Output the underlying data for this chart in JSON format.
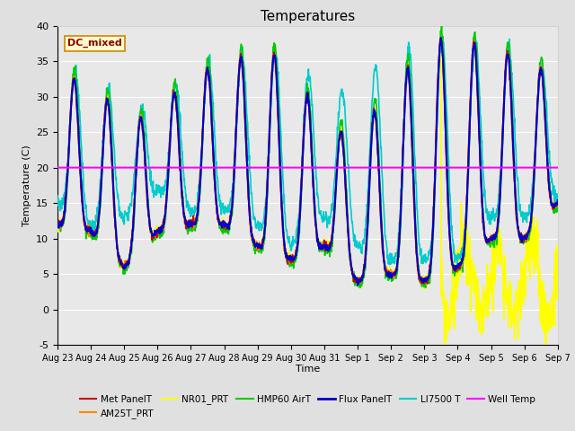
{
  "title": "Temperatures",
  "xlabel": "Time",
  "ylabel": "Temperature (C)",
  "ylim": [
    -5,
    40
  ],
  "yticks": [
    -5,
    0,
    5,
    10,
    15,
    20,
    25,
    30,
    35,
    40
  ],
  "xtick_labels": [
    "Aug 23",
    "Aug 24",
    "Aug 25",
    "Aug 26",
    "Aug 27",
    "Aug 28",
    "Aug 29",
    "Aug 30",
    "Aug 31",
    "Sep 1",
    "Sep 2",
    "Sep 3",
    "Sep 4",
    "Sep 5",
    "Sep 6",
    "Sep 7"
  ],
  "well_temp": 20.0,
  "dc_mixed_label": "DC_mixed",
  "background_color": "#e0e0e0",
  "plot_bg_color": "#e8e8e8",
  "series": {
    "Met PanelT": {
      "color": "#cc0000",
      "lw": 1.2
    },
    "AM25T_PRT": {
      "color": "#ff8800",
      "lw": 1.2
    },
    "NR01_PRT": {
      "color": "#ffff00",
      "lw": 1.2
    },
    "HMP60 AirT": {
      "color": "#00cc00",
      "lw": 1.2
    },
    "Flux PanelT": {
      "color": "#0000cc",
      "lw": 1.5
    },
    "LI7500 T": {
      "color": "#00cccc",
      "lw": 1.2
    },
    "Well Temp": {
      "color": "#ff00ff",
      "lw": 1.5
    }
  },
  "n_days": 15,
  "pts_per_day": 96,
  "nro1_drop_day": 11.5,
  "legend_ncol": 6
}
